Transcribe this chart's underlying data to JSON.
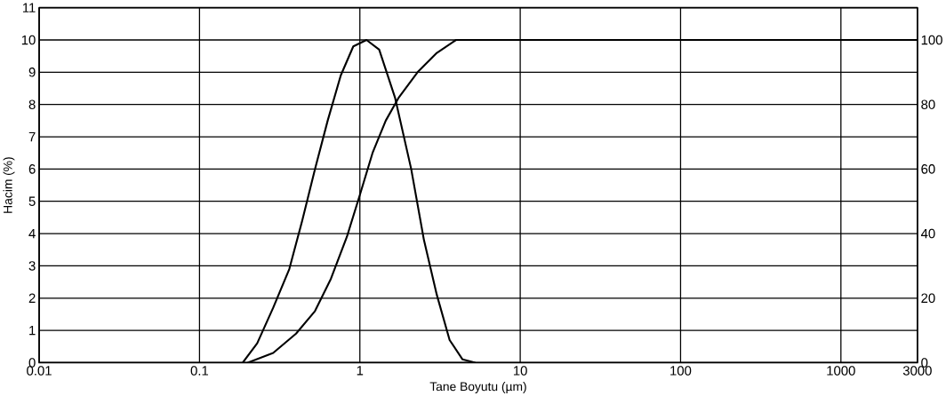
{
  "chart_data": {
    "type": "line",
    "xlabel": "Tane Boyutu (µm)",
    "ylabel": "Hacim (%)",
    "log": "x",
    "xlim": [
      0.01,
      3000
    ],
    "xticks": [
      0.01,
      0.1,
      1,
      10,
      100,
      1000,
      3000
    ],
    "ylim": [
      0,
      11
    ],
    "yticks": [
      0,
      1,
      2,
      3,
      4,
      5,
      6,
      7,
      8,
      9,
      10,
      11
    ],
    "y2lim": [
      0,
      110
    ],
    "y2ticks": [
      0,
      20,
      40,
      60,
      80,
      100
    ],
    "grid": true,
    "series": [
      {
        "color": "#000000",
        "x": [
          0.186,
          0.229,
          0.288,
          0.363,
          0.437,
          0.525,
          0.63,
          0.76,
          0.91,
          1.1,
          1.32,
          1.66,
          2.09,
          2.51,
          3.02,
          3.63,
          4.37,
          5.25
        ],
        "values": [
          0,
          0.6,
          1.7,
          2.9,
          4.4,
          6.0,
          7.5,
          8.9,
          9.8,
          10.0,
          9.7,
          8.2,
          6.0,
          3.8,
          2.1,
          0.7,
          0.1,
          0
        ]
      },
      {
        "color": "#000000",
        "axis": "y2",
        "x": [
          0.2,
          0.288,
          0.4,
          0.525,
          0.66,
          0.83,
          1.0,
          1.2,
          1.45,
          1.74,
          2.29,
          3.02,
          3.98,
          3000
        ],
        "values": [
          0,
          3,
          9,
          16,
          26,
          39,
          52,
          65,
          75,
          82,
          90,
          96,
          100,
          100
        ]
      }
    ]
  }
}
